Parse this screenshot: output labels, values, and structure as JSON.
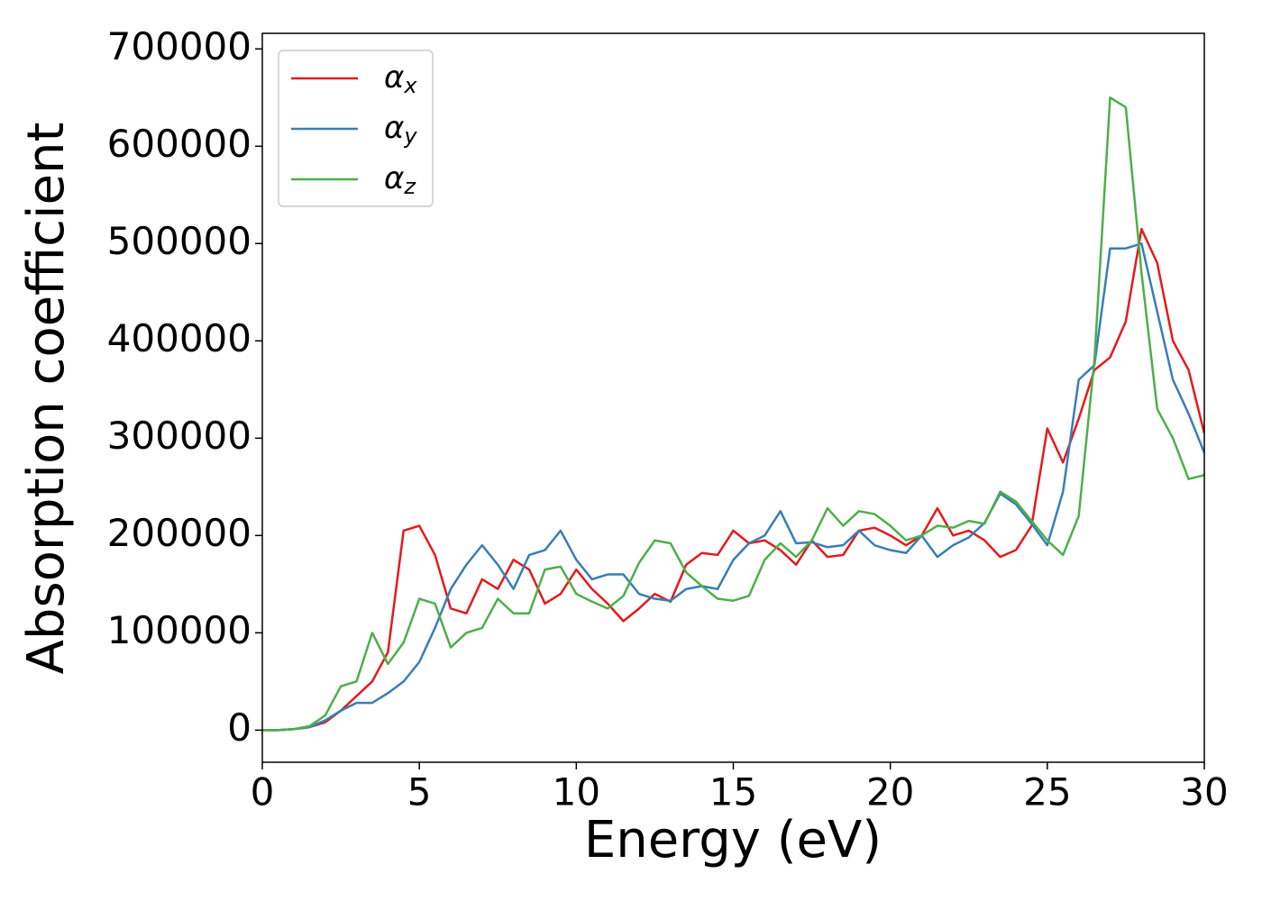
{
  "chart_data": {
    "type": "line",
    "xlabel": "Energy (eV)",
    "ylabel": "Absorption coefficient",
    "x": [
      0,
      0.5,
      1,
      1.5,
      2,
      2.5,
      3,
      3.5,
      4,
      4.5,
      5,
      5.5,
      6,
      6.5,
      7,
      7.5,
      8,
      8.5,
      9,
      9.5,
      10,
      10.5,
      11,
      11.5,
      12,
      12.5,
      13,
      13.5,
      14,
      14.5,
      15,
      15.5,
      16,
      16.5,
      17,
      17.5,
      18,
      18.5,
      19,
      19.5,
      20,
      20.5,
      21,
      21.5,
      22,
      22.5,
      23,
      23.5,
      24,
      24.5,
      25,
      25.5,
      26,
      26.5,
      27,
      27.5,
      28,
      28.5,
      29,
      29.5,
      30
    ],
    "series": [
      {
        "name": "αx",
        "color": "#e41a1c",
        "values": [
          0,
          0,
          1000,
          3000,
          8000,
          20000,
          35000,
          50000,
          80000,
          205000,
          210000,
          180000,
          125000,
          120000,
          155000,
          145000,
          175000,
          165000,
          130000,
          140000,
          165000,
          145000,
          130000,
          112000,
          125000,
          140000,
          132000,
          170000,
          182000,
          180000,
          205000,
          192000,
          195000,
          185000,
          170000,
          195000,
          178000,
          180000,
          205000,
          208000,
          200000,
          190000,
          200000,
          228000,
          200000,
          205000,
          195000,
          178000,
          185000,
          210000,
          310000,
          275000,
          320000,
          370000,
          383000,
          420000,
          515000,
          480000,
          400000,
          370000,
          305000
        ]
      },
      {
        "name": "αy",
        "color": "#377eb8",
        "values": [
          0,
          0,
          1000,
          3000,
          10000,
          20000,
          28000,
          28000,
          38000,
          50000,
          70000,
          105000,
          145000,
          170000,
          190000,
          170000,
          145000,
          180000,
          185000,
          205000,
          175000,
          155000,
          160000,
          160000,
          140000,
          135000,
          133000,
          145000,
          148000,
          145000,
          175000,
          192000,
          200000,
          225000,
          192000,
          193000,
          188000,
          190000,
          205000,
          190000,
          185000,
          182000,
          200000,
          178000,
          190000,
          198000,
          213000,
          243000,
          232000,
          212000,
          190000,
          245000,
          360000,
          375000,
          495000,
          495000,
          500000,
          430000,
          360000,
          325000,
          285000
        ]
      },
      {
        "name": "αz",
        "color": "#4daf4a",
        "values": [
          0,
          0,
          1000,
          4000,
          15000,
          45000,
          50000,
          100000,
          68000,
          90000,
          135000,
          130000,
          85000,
          100000,
          105000,
          135000,
          120000,
          120000,
          165000,
          168000,
          140000,
          132000,
          125000,
          138000,
          172000,
          195000,
          192000,
          162000,
          148000,
          135000,
          133000,
          138000,
          175000,
          192000,
          178000,
          195000,
          228000,
          210000,
          225000,
          222000,
          210000,
          195000,
          200000,
          210000,
          208000,
          215000,
          212000,
          245000,
          235000,
          215000,
          195000,
          180000,
          220000,
          380000,
          650000,
          640000,
          470000,
          330000,
          300000,
          258000,
          262000
        ]
      }
    ],
    "xlim": [
      0,
      30
    ],
    "xticks": [
      0,
      5,
      10,
      15,
      20,
      25,
      30
    ],
    "ylim": [
      -33000,
      716000
    ],
    "yticks": [
      0,
      100000,
      200000,
      300000,
      400000,
      500000,
      600000,
      700000
    ],
    "legend": "upper left",
    "grid": false
  }
}
